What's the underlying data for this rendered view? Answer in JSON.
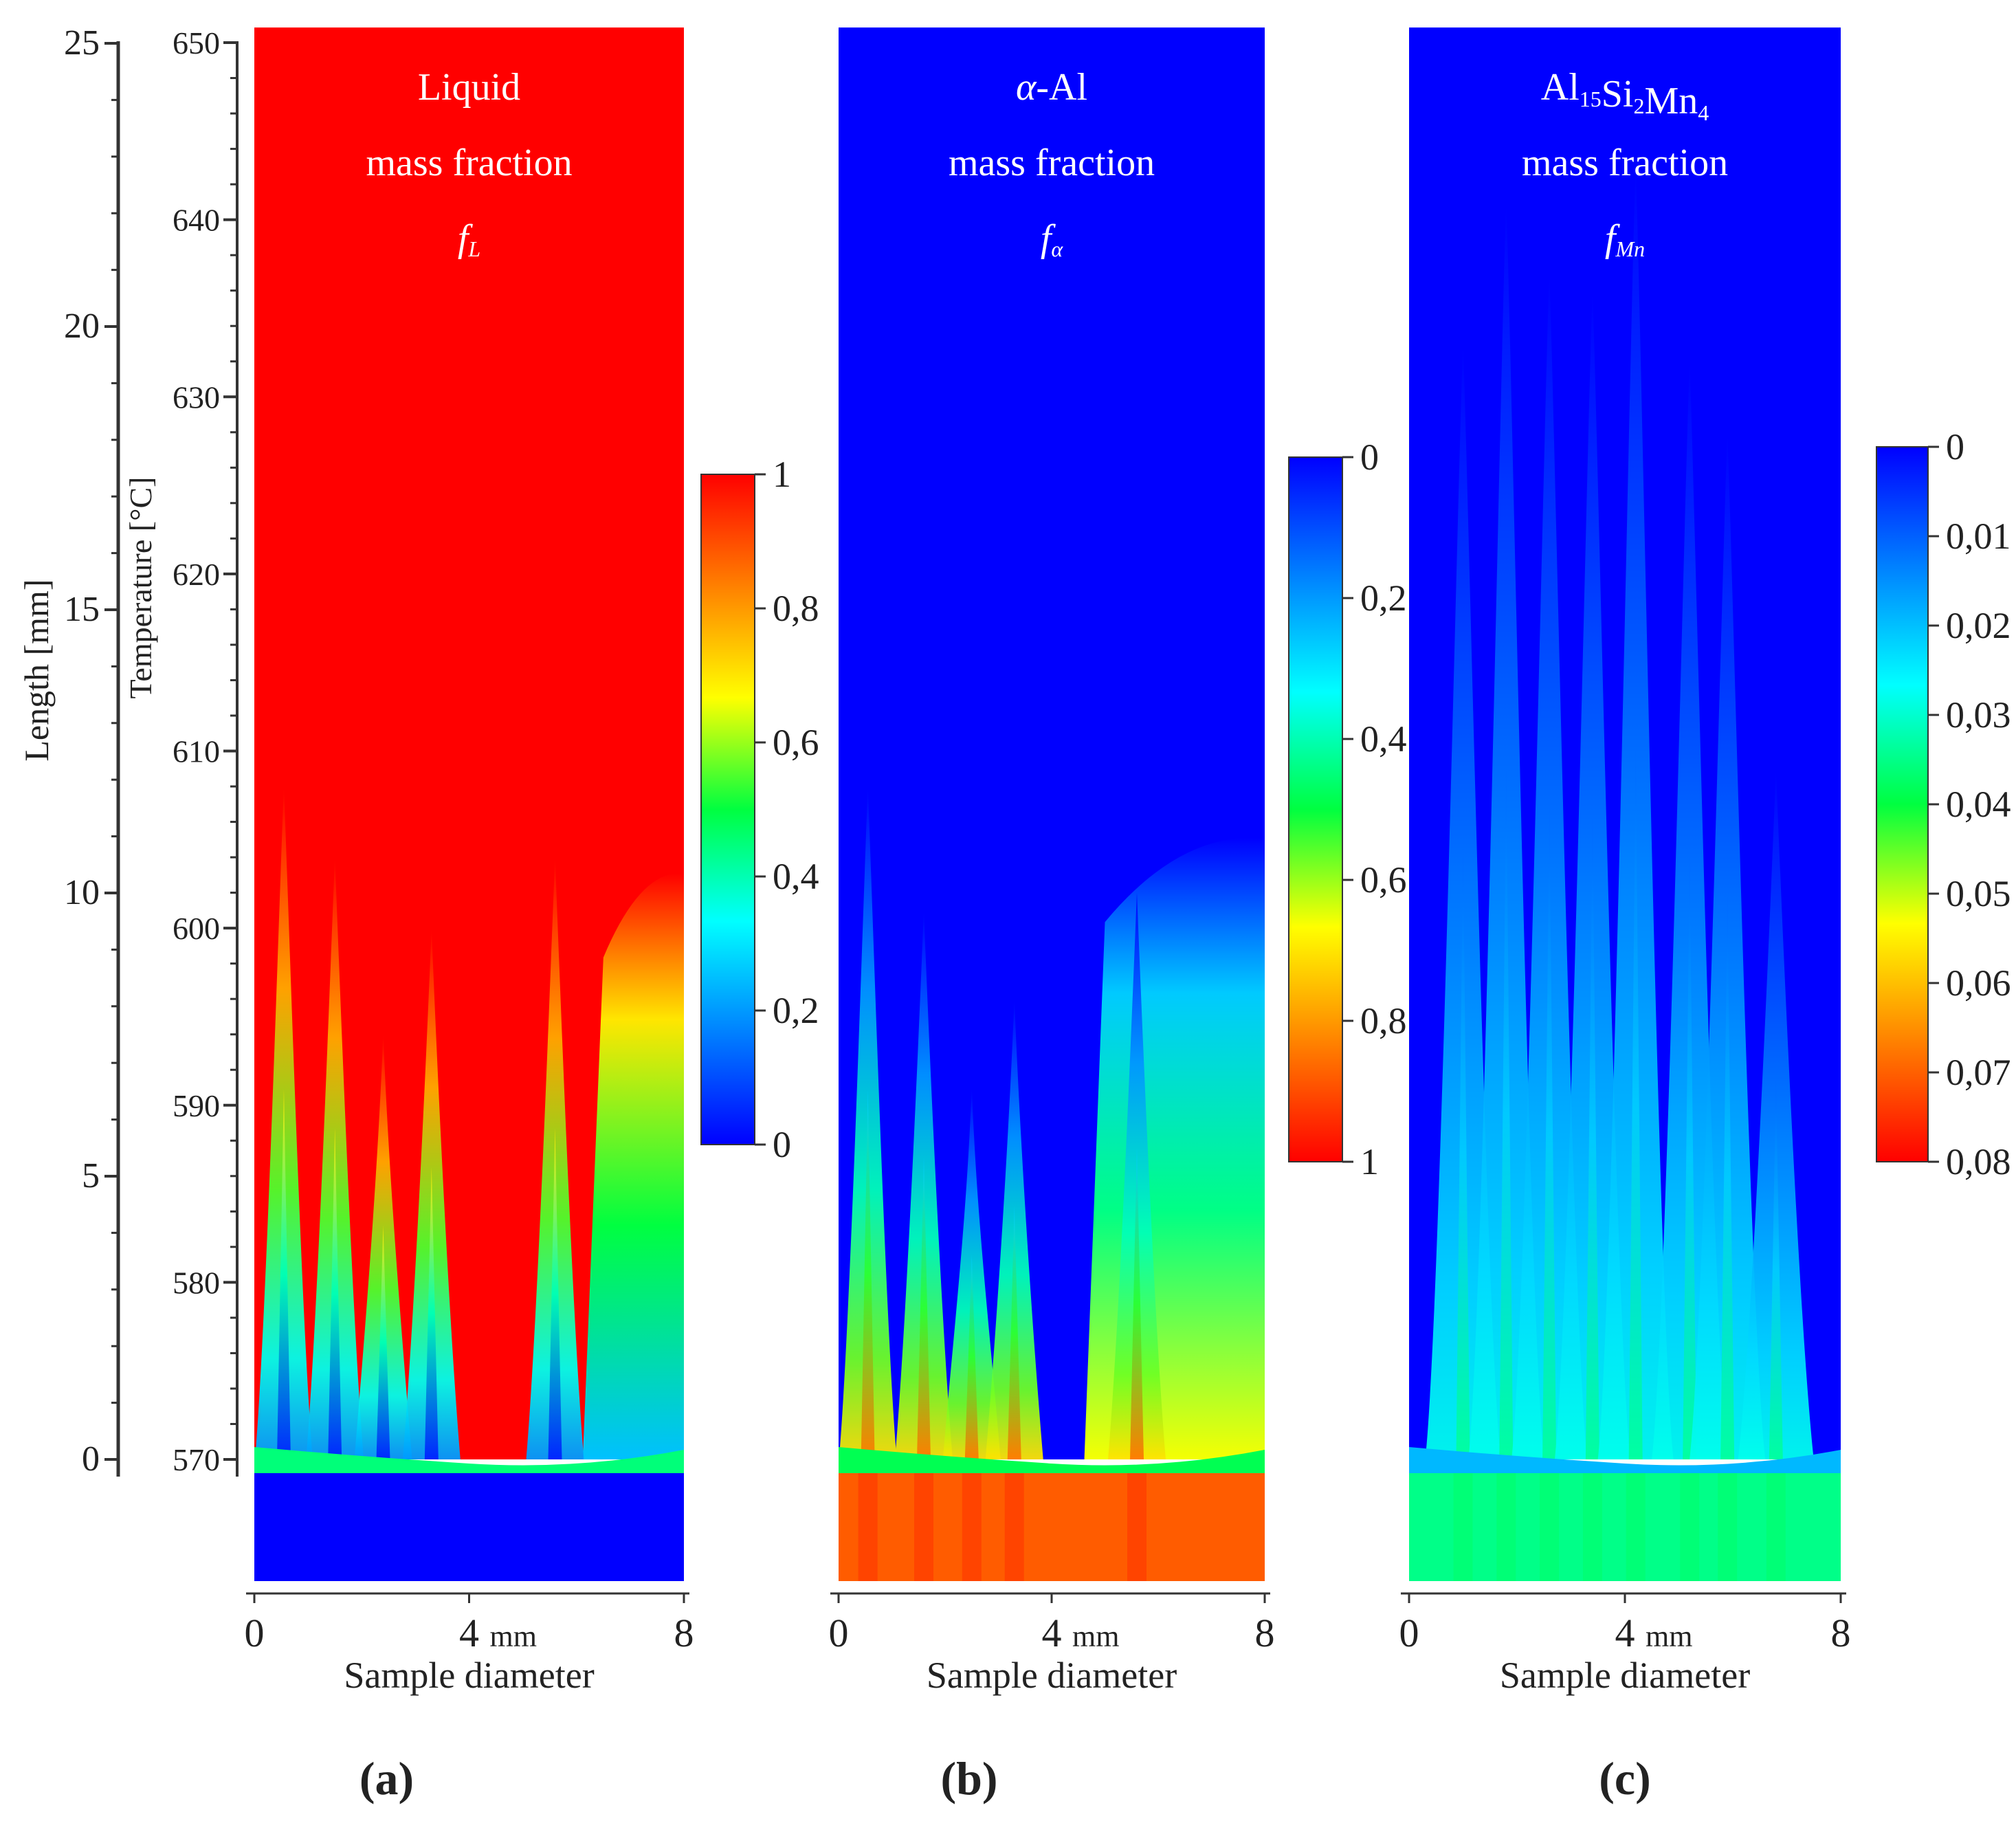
{
  "figure": {
    "length_axis": {
      "label": "Length [mm]",
      "range": [
        0,
        25
      ],
      "ticks": [
        "0",
        "5",
        "10",
        "15",
        "20",
        "25"
      ]
    },
    "temperature_axis": {
      "label": "Temperature [°C]",
      "range": [
        570,
        650
      ],
      "ticks": [
        "570",
        "580",
        "590",
        "600",
        "610",
        "620",
        "630",
        "640",
        "650"
      ]
    },
    "x_axis": {
      "label": "Sample diameter",
      "unit": "mm",
      "ticks": [
        "0",
        "4",
        "8"
      ]
    }
  },
  "chart_data": [
    {
      "type": "heatmap",
      "panel_label": "(a)",
      "title_lines": [
        "Liquid",
        "mass fraction",
        "fL"
      ],
      "title_symbol": "f",
      "title_subscript": "L",
      "xlabel": "Sample diameter",
      "x_unit": "mm",
      "xlim": [
        0,
        8
      ],
      "xticks": [
        "0",
        "4",
        "8"
      ],
      "ylabel_left": "Length [mm]",
      "ylim_length": [
        0,
        25
      ],
      "ylabel_right": "Temperature [°C]",
      "ylim_temperature": [
        570,
        650
      ],
      "colorbar": {
        "range": [
          0,
          1
        ],
        "ticks": [
          "1",
          "0,8",
          "0,6",
          "0,4",
          "0,2",
          "0"
        ],
        "scale": [
          "#0000ff",
          "#0080ff",
          "#00ffff",
          "#00ff40",
          "#ffff00",
          "#ff8000",
          "#ff0000"
        ]
      },
      "field": {
        "bulk_value": 1,
        "below_front_value": 0,
        "front_temperature": 570,
        "plumes": [
          {
            "x": 0.55,
            "tip_temperature": 608
          },
          {
            "x": 1.5,
            "tip_temperature": 604
          },
          {
            "x": 2.4,
            "tip_temperature": 594
          },
          {
            "x": 3.3,
            "tip_temperature": 600
          },
          {
            "x": 5.6,
            "tip_temperature": 604
          }
        ],
        "edge_region": {
          "x_from": 6.5,
          "x_to": 8,
          "top_temperature": 603
        }
      }
    },
    {
      "type": "heatmap",
      "panel_label": "(b)",
      "title_lines": [
        "α-Al",
        "mass fraction",
        "fα"
      ],
      "title_symbol": "f",
      "title_subscript": "α",
      "xlabel": "Sample diameter",
      "x_unit": "mm",
      "xlim": [
        0,
        8
      ],
      "xticks": [
        "0",
        "4",
        "8"
      ],
      "colorbar": {
        "range": [
          0,
          1
        ],
        "ticks": [
          "0",
          "0,2",
          "0,4",
          "0,6",
          "0,8",
          "1"
        ],
        "scale": [
          "#0000ff",
          "#0080ff",
          "#00ffff",
          "#00ff40",
          "#ffff00",
          "#ff8000",
          "#ff0000"
        ]
      },
      "field": {
        "bulk_value": 0,
        "below_front_value": 0.88,
        "front_temperature": 570,
        "plumes": [
          {
            "x": 0.55,
            "tip_temperature": 608
          },
          {
            "x": 1.6,
            "tip_temperature": 601
          },
          {
            "x": 2.5,
            "tip_temperature": 591
          },
          {
            "x": 3.3,
            "tip_temperature": 596
          },
          {
            "x": 5.6,
            "tip_temperature": 602
          }
        ],
        "edge_region": {
          "x_from": 5.0,
          "x_to": 8,
          "top_temperature": 605
        }
      }
    },
    {
      "type": "heatmap",
      "panel_label": "(c)",
      "title_lines": [
        "Al15Si2Mn4",
        "mass fraction",
        "fMn"
      ],
      "title_formula": [
        "Al",
        "15",
        "Si",
        "2",
        "Mn",
        "4"
      ],
      "title_symbol": "f",
      "title_subscript": "Mn",
      "xlabel": "Sample diameter",
      "x_unit": "mm",
      "xlim": [
        0,
        8
      ],
      "xticks": [
        "0",
        "4",
        "8"
      ],
      "colorbar": {
        "range": [
          0,
          0.08
        ],
        "ticks": [
          "0",
          "0,01",
          "0,02",
          "0,03",
          "0,04",
          "0,05",
          "0,06",
          "0,07",
          "0,08"
        ],
        "scale": [
          "#0000ff",
          "#0080ff",
          "#00ffff",
          "#00ff40",
          "#ffff00",
          "#ff8000",
          "#ff0000"
        ]
      },
      "field": {
        "bulk_value": 0,
        "below_front_value": 0.035,
        "front_temperature": 570,
        "plumes": [
          {
            "x": 1.0,
            "tip_temperature": 633
          },
          {
            "x": 1.8,
            "tip_temperature": 641
          },
          {
            "x": 2.6,
            "tip_temperature": 637
          },
          {
            "x": 3.4,
            "tip_temperature": 636
          },
          {
            "x": 4.2,
            "tip_temperature": 643
          },
          {
            "x": 5.2,
            "tip_temperature": 632
          },
          {
            "x": 5.9,
            "tip_temperature": 628
          },
          {
            "x": 6.8,
            "tip_temperature": 609
          }
        ]
      }
    }
  ]
}
